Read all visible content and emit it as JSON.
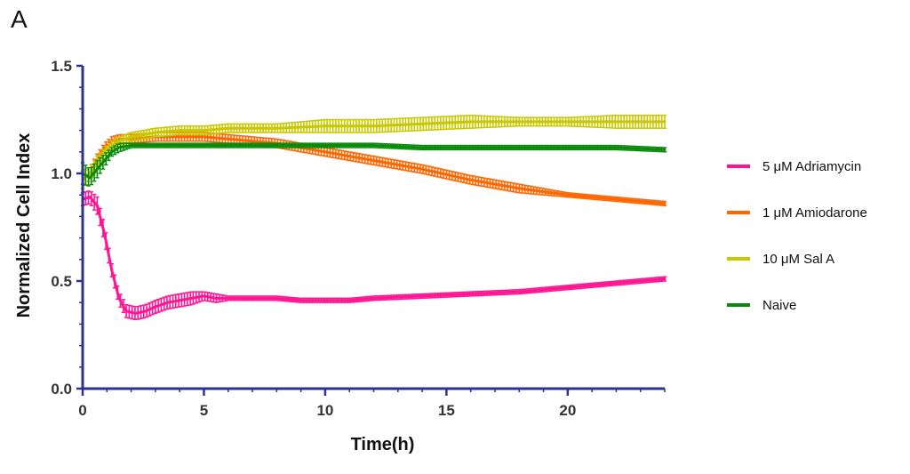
{
  "panel_label": "A",
  "chart_data": {
    "type": "line",
    "title": "",
    "xlabel": "Time(h)",
    "ylabel": "Normalized Cell Index",
    "xlim": [
      0,
      24
    ],
    "ylim": [
      0.0,
      1.5
    ],
    "xticks": [
      0,
      5,
      10,
      15,
      20
    ],
    "xtick_labels": [
      "0",
      "5",
      "10",
      "15",
      "20"
    ],
    "yticks": [
      0.0,
      0.5,
      1.0,
      1.5
    ],
    "ytick_labels": [
      "0.0",
      "0.5",
      "1.0",
      "1.5"
    ],
    "grid": false,
    "legend_position": "right",
    "axis_color": "#2e3192",
    "series": [
      {
        "name": "5 μM Adriamycin",
        "color": "#ff1493",
        "x": [
          0,
          0.3,
          0.6,
          0.9,
          1.2,
          1.5,
          1.8,
          2.2,
          2.6,
          3,
          3.5,
          4,
          4.5,
          5,
          5.5,
          6,
          7,
          8,
          9,
          10,
          11,
          12,
          14,
          16,
          18,
          20,
          22,
          24
        ],
        "y": [
          0.88,
          0.89,
          0.85,
          0.72,
          0.55,
          0.42,
          0.36,
          0.35,
          0.36,
          0.38,
          0.4,
          0.41,
          0.42,
          0.43,
          0.42,
          0.42,
          0.42,
          0.42,
          0.41,
          0.41,
          0.41,
          0.42,
          0.43,
          0.44,
          0.45,
          0.47,
          0.49,
          0.51
        ],
        "err": [
          0.03,
          0.03,
          0.04,
          0.04,
          0.03,
          0.03,
          0.03,
          0.03,
          0.03,
          0.03,
          0.03,
          0.03,
          0.03,
          0.02,
          0.02,
          0.01,
          0.01,
          0.01,
          0.01,
          0.01,
          0.01,
          0.01,
          0.01,
          0.01,
          0.01,
          0.01,
          0.01,
          0.01
        ]
      },
      {
        "name": "1 μM Amiodarone",
        "color": "#ff6600",
        "x": [
          0,
          0.3,
          0.6,
          0.9,
          1.2,
          1.5,
          2,
          3,
          4,
          5,
          6,
          7,
          8,
          9,
          10,
          12,
          14,
          16,
          18,
          20,
          22,
          24
        ],
        "y": [
          0.97,
          1.0,
          1.06,
          1.12,
          1.15,
          1.16,
          1.16,
          1.17,
          1.17,
          1.17,
          1.16,
          1.15,
          1.14,
          1.12,
          1.1,
          1.06,
          1.02,
          0.97,
          0.93,
          0.9,
          0.88,
          0.86
        ],
        "err": [
          0.04,
          0.03,
          0.03,
          0.02,
          0.02,
          0.02,
          0.02,
          0.02,
          0.02,
          0.02,
          0.02,
          0.02,
          0.02,
          0.02,
          0.02,
          0.02,
          0.02,
          0.02,
          0.02,
          0.01,
          0.01,
          0.01
        ]
      },
      {
        "name": "10 μM Sal A",
        "color": "#c8c800",
        "x": [
          0,
          0.3,
          0.6,
          0.9,
          1.2,
          1.5,
          2,
          3,
          4,
          5,
          6,
          8,
          10,
          12,
          14,
          16,
          18,
          20,
          22,
          24
        ],
        "y": [
          0.97,
          1.0,
          1.05,
          1.1,
          1.13,
          1.15,
          1.17,
          1.19,
          1.2,
          1.2,
          1.21,
          1.21,
          1.22,
          1.22,
          1.23,
          1.24,
          1.24,
          1.24,
          1.24,
          1.24
        ],
        "err": [
          0.04,
          0.03,
          0.03,
          0.02,
          0.02,
          0.02,
          0.02,
          0.02,
          0.02,
          0.02,
          0.02,
          0.02,
          0.03,
          0.03,
          0.03,
          0.03,
          0.02,
          0.02,
          0.03,
          0.03
        ]
      },
      {
        "name": "Naive",
        "color": "#0a8a0a",
        "x": [
          0,
          0.3,
          0.6,
          0.9,
          1.2,
          1.5,
          2,
          3,
          4,
          5,
          6,
          8,
          10,
          12,
          14,
          16,
          18,
          20,
          22,
          24
        ],
        "y": [
          1.0,
          0.98,
          1.02,
          1.06,
          1.1,
          1.12,
          1.13,
          1.13,
          1.13,
          1.13,
          1.13,
          1.13,
          1.13,
          1.13,
          1.12,
          1.12,
          1.12,
          1.12,
          1.12,
          1.11
        ],
        "err": [
          0.05,
          0.04,
          0.04,
          0.03,
          0.02,
          0.02,
          0.01,
          0.01,
          0.01,
          0.01,
          0.01,
          0.01,
          0.01,
          0.01,
          0.01,
          0.01,
          0.01,
          0.01,
          0.01,
          0.01
        ]
      }
    ]
  }
}
